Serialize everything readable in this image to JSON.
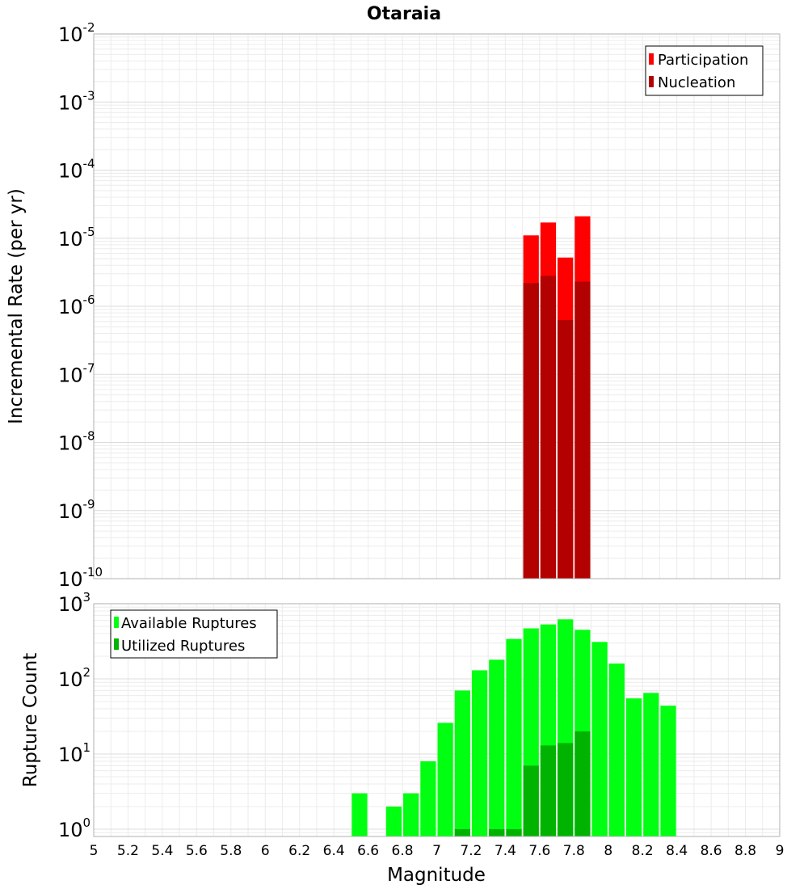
{
  "chart_data": [
    {
      "type": "bar",
      "title": "Otaraia",
      "xlabel": "",
      "ylabel": "Incremental Rate (per yr)",
      "yscale": "log",
      "ylim": [
        1e-10,
        0.01
      ],
      "xlim": [
        5,
        9
      ],
      "ytick_exponents": [
        "-2",
        "-3",
        "-4",
        "-5",
        "-6",
        "-7",
        "-8",
        "-9",
        "-10"
      ],
      "ytick_base": "10",
      "legend_position": "top-right",
      "bin_width": 0.1,
      "x": [
        7.55,
        7.65,
        7.75,
        7.85
      ],
      "series": [
        {
          "name": "Participation",
          "color": "#ff0000",
          "values": [
            1.1e-05,
            1.7e-05,
            5.2e-06,
            2.1e-05
          ]
        },
        {
          "name": "Nucleation",
          "color": "#b30000",
          "values": [
            2.2e-06,
            2.8e-06,
            6.3e-07,
            2.3e-06
          ]
        }
      ]
    },
    {
      "type": "bar",
      "title": "",
      "xlabel": "Magnitude",
      "ylabel": "Rupture Count",
      "yscale": "log",
      "ylim": [
        0.8,
        1000
      ],
      "xlim": [
        5,
        9
      ],
      "ytick_exponents": [
        "3",
        "2",
        "1",
        "0"
      ],
      "ytick_base": "10",
      "xticks": [
        "5",
        "5.2",
        "5.4",
        "5.6",
        "5.8",
        "6",
        "6.2",
        "6.4",
        "6.6",
        "6.8",
        "7",
        "7.2",
        "7.4",
        "7.6",
        "7.8",
        "8",
        "8.2",
        "8.4",
        "8.6",
        "8.8",
        "9"
      ],
      "legend_position": "top-left",
      "bin_width": 0.1,
      "series": [
        {
          "name": "Available Ruptures",
          "color": "#00ff10",
          "x": [
            6.55,
            6.75,
            6.85,
            6.95,
            7.05,
            7.15,
            7.25,
            7.35,
            7.45,
            7.55,
            7.65,
            7.75,
            7.85,
            7.95,
            8.05,
            8.15,
            8.25,
            8.35
          ],
          "values": [
            3,
            2,
            3,
            8,
            26,
            70,
            130,
            180,
            340,
            470,
            530,
            620,
            450,
            310,
            160,
            55,
            65,
            44
          ]
        },
        {
          "name": "Utilized Ruptures",
          "color": "#00b300",
          "x": [
            7.15,
            7.35,
            7.45,
            7.55,
            7.65,
            7.75,
            7.85
          ],
          "values": [
            1,
            1,
            1,
            7,
            13,
            14,
            20
          ]
        }
      ]
    }
  ]
}
